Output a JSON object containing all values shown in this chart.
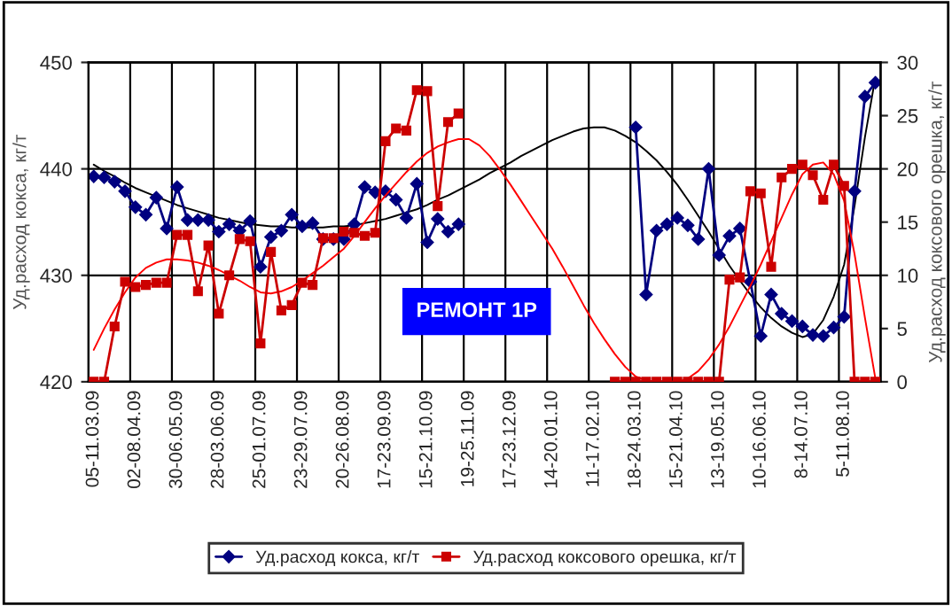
{
  "chart_data": {
    "type": "line",
    "categories": [
      "05-11.03.09",
      null,
      null,
      null,
      "02-08.04.09",
      null,
      null,
      null,
      "30-06.05.09",
      null,
      null,
      null,
      "28-03.06.09",
      null,
      null,
      null,
      "25-01.07.09",
      null,
      null,
      null,
      "23-29.07.09",
      null,
      null,
      null,
      "20-26.08.09",
      null,
      null,
      null,
      "17-23.09.09",
      null,
      null,
      null,
      "15-21.10.09",
      null,
      null,
      null,
      "19-25.11.09",
      null,
      null,
      null,
      "17-23.12.09",
      null,
      null,
      null,
      "14-20.01.10",
      null,
      null,
      null,
      "11-17.02.10",
      null,
      null,
      null,
      "18-24.03.10",
      null,
      null,
      null,
      "15-21.04.10",
      null,
      null,
      null,
      "13-19.05.10",
      null,
      null,
      null,
      "10-16.06.10",
      null,
      null,
      null,
      "8-14.07.10",
      null,
      null,
      null,
      "5-11.08.10",
      null,
      null,
      null
    ],
    "ylabel": "Уд.расход кокса, кг/т",
    "y2label": "Уд.расход коксового орешка, кг/т",
    "ylim": [
      420,
      450
    ],
    "yticks": [
      420,
      430,
      440,
      450
    ],
    "y2lim": [
      0,
      30
    ],
    "y2ticks": [
      0,
      5,
      10,
      15,
      20,
      25,
      30
    ],
    "grid": true,
    "legend": "bottom",
    "line_style": "solid",
    "annotations": [
      "РЕМОНТ 1Р"
    ],
    "series": [
      {
        "name": "Уд.расход кокса, кг/т",
        "color": "#000080",
        "marker": "diamond",
        "values": [
          439.3,
          439.2,
          438.8,
          437.9,
          436.4,
          435.7,
          437.3,
          434.4,
          438.3,
          435.2,
          435.2,
          435.2,
          434.1,
          434.8,
          434.2,
          435.1,
          430.8,
          433.6,
          434.2,
          435.7,
          434.6,
          434.9,
          433.4,
          433.4,
          433.4,
          434.8,
          438.3,
          437.8,
          437.9,
          437.1,
          435.4,
          438.6,
          433.1,
          435.3,
          434.1,
          434.8,
          null,
          null,
          null,
          null,
          null,
          null,
          null,
          null,
          null,
          null,
          null,
          null,
          null,
          null,
          null,
          null,
          443.9,
          428.2,
          434.2,
          434.8,
          435.4,
          434.7,
          433.4,
          440.0,
          431.9,
          433.7,
          434.4,
          429.4,
          424.3,
          428.2,
          426.4,
          425.7,
          425.2,
          424.4,
          424.3,
          425.1,
          426.1,
          437.9,
          446.8,
          448.1
        ]
      },
      {
        "name": "Уд.расход коксового орешка, кг/т",
        "color": "#cc0000",
        "marker": "square",
        "axis": "y2",
        "values": [
          0,
          0,
          5.2,
          9.4,
          8.9,
          9.1,
          9.3,
          9.3,
          13.8,
          13.8,
          8.5,
          12.8,
          6.4,
          10.0,
          13.4,
          13.2,
          3.6,
          12.2,
          6.7,
          7.2,
          9.3,
          9.1,
          13.5,
          13.5,
          14.1,
          14.0,
          13.7,
          14.0,
          22.6,
          23.8,
          23.6,
          27.4,
          27.3,
          16.5,
          24.4,
          25.2,
          null,
          null,
          null,
          null,
          null,
          null,
          null,
          null,
          null,
          null,
          null,
          null,
          null,
          null,
          0,
          0,
          0,
          0,
          0,
          0,
          0,
          0,
          0,
          0,
          0,
          9.6,
          9.8,
          17.9,
          17.7,
          10.8,
          19.2,
          20.0,
          20.4,
          19.4,
          17.1,
          20.4,
          18.4,
          0,
          0,
          0
        ]
      },
      {
        "type": "line",
        "color": "#000000",
        "marker": "none",
        "values": [
          440.4,
          439.8,
          439.3,
          438.7,
          438.2,
          437.8,
          437.4,
          437.0,
          436.6,
          436.3,
          436.0,
          435.7,
          435.4,
          435.2,
          435.0,
          434.8,
          434.7,
          434.6,
          434.6,
          434.5,
          434.5,
          434.5,
          434.5,
          434.6,
          434.6,
          434.7,
          434.9,
          435.1,
          435.3,
          435.6,
          435.9,
          436.2,
          436.6,
          437.1,
          437.5,
          438.0,
          438.5,
          439.0,
          439.6,
          440.1,
          440.6,
          441.2,
          441.7,
          442.2,
          442.7,
          443.1,
          443.5,
          443.8,
          443.9,
          443.9,
          443.6,
          443.1,
          442.5,
          441.7,
          440.8,
          439.7,
          438.5,
          437.1,
          435.6,
          434.1,
          432.5,
          430.9,
          429.5,
          428.2,
          427.0,
          426.0,
          425.2,
          424.6,
          424.2,
          424.5,
          425.8,
          428.0,
          431.0,
          436.5,
          443.0,
          448.6
        ]
      },
      {
        "type": "line",
        "color": "#ff0000",
        "marker": "none",
        "axis": "y2",
        "values": [
          3.0,
          5.0,
          6.8,
          8.4,
          9.8,
          10.7,
          11.2,
          11.5,
          11.5,
          11.4,
          11.2,
          10.9,
          10.5,
          10.0,
          9.5,
          8.9,
          8.4,
          8.3,
          8.5,
          8.9,
          9.5,
          10.2,
          10.9,
          11.7,
          12.5,
          13.7,
          15.0,
          16.3,
          17.5,
          18.6,
          19.7,
          20.7,
          21.5,
          22.1,
          22.5,
          22.8,
          22.8,
          22.2,
          21.2,
          19.9,
          18.5,
          17.0,
          15.5,
          14.0,
          12.5,
          10.8,
          9.0,
          7.2,
          5.5,
          4.0,
          2.6,
          1.4,
          0.5,
          0.1,
          0.0,
          0.0,
          0.0,
          0.3,
          1.0,
          2.1,
          3.5,
          5.2,
          7.1,
          9.0,
          11.0,
          13.2,
          15.4,
          17.6,
          19.5,
          20.4,
          20.6,
          19.5,
          17.0,
          12.0,
          6.0,
          0.3
        ]
      }
    ]
  }
}
